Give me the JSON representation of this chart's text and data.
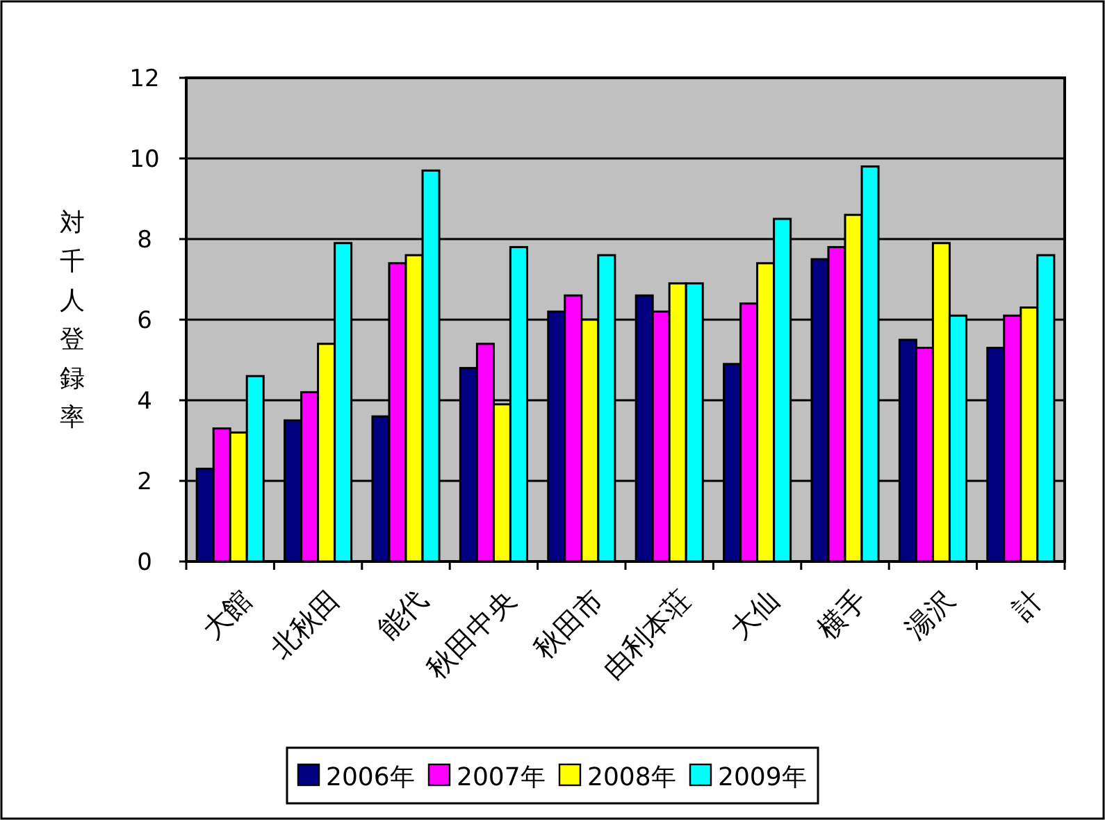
{
  "chart_data": {
    "type": "bar",
    "ylabel": "対千人登録率",
    "categories": [
      "大館",
      "北秋田",
      "能代",
      "秋田中央",
      "秋田市",
      "由利本荘",
      "大仙",
      "横手",
      "湯沢",
      "計"
    ],
    "series": [
      {
        "name": "2006年",
        "color": "#000080",
        "values": [
          2.3,
          3.5,
          3.6,
          4.8,
          6.2,
          6.6,
          4.9,
          7.5,
          5.5,
          5.3
        ]
      },
      {
        "name": "2007年",
        "color": "#ff00ff",
        "values": [
          3.3,
          4.2,
          7.4,
          5.4,
          6.6,
          6.2,
          6.4,
          7.8,
          5.3,
          6.1
        ]
      },
      {
        "name": "2008年",
        "color": "#ffff00",
        "values": [
          3.2,
          5.4,
          7.6,
          3.9,
          6.0,
          6.9,
          7.4,
          8.6,
          7.9,
          6.3
        ]
      },
      {
        "name": "2009年",
        "color": "#00ffff",
        "values": [
          4.6,
          7.9,
          9.7,
          7.8,
          7.6,
          6.9,
          8.5,
          9.8,
          6.1,
          7.6
        ]
      }
    ],
    "ylim": [
      0,
      12
    ],
    "yticks": [
      0,
      2,
      4,
      6,
      8,
      10,
      12
    ],
    "grid": "y",
    "legend": "bottom"
  }
}
